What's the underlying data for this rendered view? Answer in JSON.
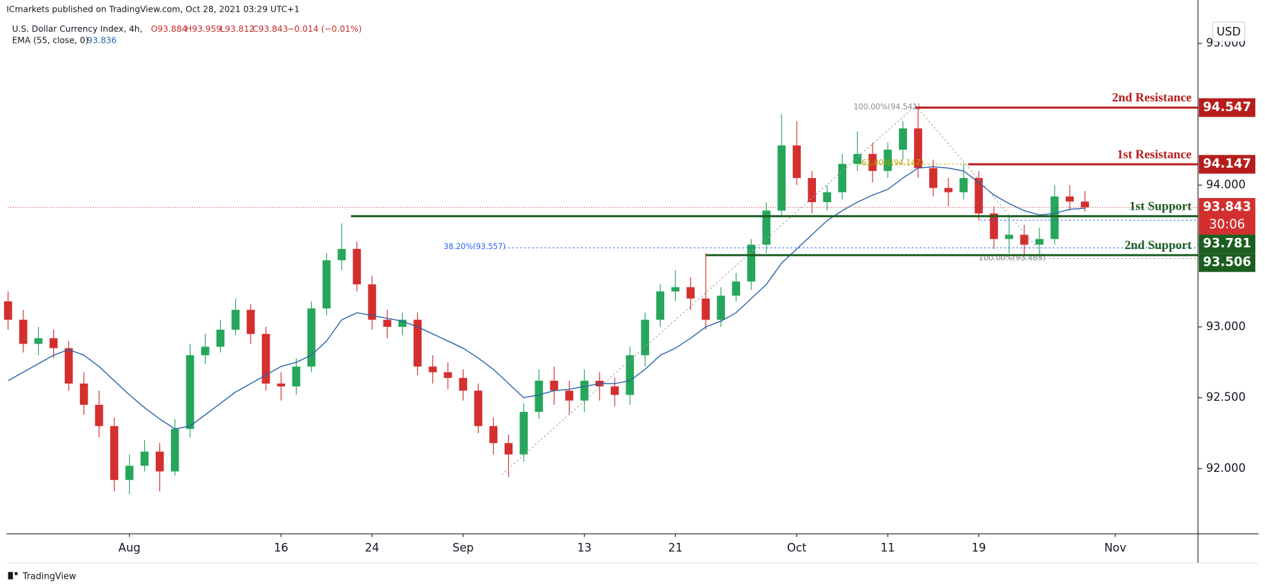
{
  "header": {
    "source": "ICmarkets published on TradingView.com, Oct 28, 2021 03:29 UTC+1",
    "symbol": "U.S. Dollar Currency Index, 4h,",
    "ohlc": [
      "O93.884",
      "H93.959",
      "L93.812",
      "C93.843",
      "−0.014 (−0.01%)"
    ],
    "indicator": "EMA (55, close, 0)"
  },
  "currency": "USD",
  "countdown": "30:06",
  "footer": "TradingView",
  "annotations": [
    "100.00%(94.541)",
    "61.80%(94.147)",
    "38.20%(93.557)",
    "100.00%(93.483)"
  ],
  "chart_data": {
    "type": "candlestick",
    "categories": [
      null,
      null,
      null,
      null,
      null,
      null,
      null,
      null,
      "Aug",
      null,
      null,
      null,
      null,
      null,
      null,
      null,
      null,
      null,
      "16",
      null,
      null,
      null,
      null,
      null,
      "24",
      null,
      null,
      null,
      null,
      null,
      "Sep",
      null,
      null,
      null,
      null,
      null,
      null,
      null,
      "13",
      null,
      null,
      null,
      null,
      null,
      "21",
      null,
      null,
      null,
      null,
      null,
      null,
      null,
      "Oct",
      null,
      null,
      null,
      null,
      null,
      "11",
      null,
      null,
      null,
      null,
      null,
      "19",
      null,
      null,
      null,
      null,
      null,
      null,
      null,
      null,
      "Nov"
    ],
    "open": [
      93.18,
      93.05,
      92.88,
      92.92,
      92.85,
      92.6,
      92.45,
      92.3,
      91.92,
      92.02,
      92.12,
      91.98,
      92.28,
      92.8,
      92.86,
      92.98,
      93.12,
      92.95,
      92.6,
      92.58,
      92.72,
      93.13,
      93.47,
      93.55,
      93.3,
      93.05,
      93.0,
      93.05,
      92.72,
      92.68,
      92.64,
      92.55,
      92.3,
      92.18,
      92.1,
      92.4,
      92.62,
      92.55,
      92.48,
      92.62,
      92.58,
      92.52,
      92.8,
      93.05,
      93.25,
      93.28,
      93.2,
      93.05,
      93.22,
      93.32,
      93.58,
      93.82,
      94.28,
      94.05,
      93.88,
      93.95,
      94.15,
      94.22,
      94.1,
      94.25,
      94.4,
      94.12,
      93.98,
      93.95,
      94.05,
      93.8,
      93.62,
      93.65,
      93.58,
      93.62,
      93.92,
      93.884,
      null,
      null
    ],
    "high": [
      93.25,
      93.12,
      93.0,
      92.98,
      92.9,
      92.68,
      92.55,
      92.36,
      92.1,
      92.2,
      92.18,
      92.35,
      92.88,
      92.95,
      93.05,
      93.2,
      93.16,
      93.0,
      92.68,
      92.78,
      93.18,
      93.52,
      93.73,
      93.6,
      93.36,
      93.12,
      93.1,
      93.1,
      92.8,
      92.75,
      92.7,
      92.6,
      92.36,
      92.24,
      92.46,
      92.7,
      92.72,
      92.62,
      92.7,
      92.68,
      92.64,
      92.86,
      93.1,
      93.3,
      93.4,
      93.35,
      93.52,
      93.28,
      93.38,
      93.62,
      93.88,
      94.5,
      94.45,
      94.1,
      94.0,
      94.22,
      94.38,
      94.3,
      94.3,
      94.45,
      94.541,
      94.18,
      94.05,
      94.15,
      94.1,
      93.85,
      93.78,
      93.72,
      93.7,
      94.0,
      94.0,
      93.959,
      null,
      null
    ],
    "low": [
      92.98,
      92.82,
      92.8,
      92.78,
      92.55,
      92.38,
      92.22,
      91.84,
      91.82,
      91.98,
      91.84,
      91.95,
      92.22,
      92.74,
      92.82,
      92.94,
      92.88,
      92.55,
      92.48,
      92.52,
      92.68,
      93.08,
      93.4,
      93.25,
      92.98,
      92.92,
      92.94,
      92.66,
      92.6,
      92.56,
      92.48,
      92.25,
      92.1,
      91.94,
      92.05,
      92.35,
      92.45,
      92.38,
      92.4,
      92.48,
      92.44,
      92.45,
      92.72,
      93.0,
      93.18,
      93.12,
      92.98,
      93.0,
      93.18,
      93.26,
      93.52,
      93.78,
      94.0,
      93.8,
      93.82,
      93.9,
      94.1,
      94.02,
      94.05,
      94.18,
      94.05,
      93.92,
      93.85,
      93.9,
      93.75,
      93.55,
      93.52,
      93.5,
      93.483,
      93.58,
      93.82,
      93.812,
      null,
      null
    ],
    "close": [
      93.05,
      92.88,
      92.92,
      92.85,
      92.6,
      92.45,
      92.3,
      91.92,
      92.02,
      92.12,
      91.98,
      92.28,
      92.8,
      92.86,
      92.98,
      93.12,
      92.95,
      92.6,
      92.58,
      92.72,
      93.13,
      93.47,
      93.55,
      93.3,
      93.05,
      93.0,
      93.05,
      92.72,
      92.68,
      92.64,
      92.55,
      92.3,
      92.18,
      92.1,
      92.4,
      92.62,
      92.55,
      92.48,
      92.62,
      92.58,
      92.52,
      92.8,
      93.05,
      93.25,
      93.28,
      93.2,
      93.05,
      93.22,
      93.32,
      93.58,
      93.82,
      94.28,
      94.05,
      93.88,
      93.95,
      94.15,
      94.22,
      94.1,
      94.25,
      94.4,
      94.12,
      93.98,
      93.95,
      94.05,
      93.8,
      93.62,
      93.65,
      93.58,
      93.62,
      93.92,
      93.884,
      93.843,
      null,
      null
    ],
    "up_color": "#26a65b",
    "down_color": "#d32f2f",
    "ema": {
      "color": "#2962a8",
      "values": [
        92.62,
        92.68,
        92.74,
        92.8,
        92.84,
        92.8,
        92.72,
        92.62,
        92.52,
        92.43,
        92.35,
        92.28,
        92.3,
        92.38,
        92.46,
        92.54,
        92.6,
        92.66,
        92.72,
        92.75,
        92.8,
        92.9,
        93.05,
        93.1,
        93.08,
        93.06,
        93.04,
        93.0,
        92.95,
        92.9,
        92.85,
        92.78,
        92.7,
        92.6,
        92.5,
        92.52,
        92.55,
        92.56,
        92.58,
        92.6,
        92.6,
        92.62,
        92.7,
        92.8,
        92.85,
        92.92,
        93.0,
        93.04,
        93.1,
        93.2,
        93.3,
        93.45,
        93.55,
        93.65,
        93.75,
        93.82,
        93.88,
        93.93,
        93.97,
        94.05,
        94.12,
        94.13,
        94.12,
        94.1,
        94.02,
        93.93,
        93.87,
        93.82,
        93.79,
        93.8,
        93.83,
        93.836,
        null,
        null
      ]
    },
    "last_price": 93.843,
    "last_price_color": "#d32f2f",
    "levels": [
      {
        "name": "2nd Resistance",
        "value": 94.547,
        "color": "#b71c1c"
      },
      {
        "name": "1st Resistance",
        "value": 94.147,
        "color": "#b71c1c"
      },
      {
        "name": "1st Support",
        "value": 93.781,
        "color": "#1b5e20"
      },
      {
        "name": "2nd Support",
        "value": 93.506,
        "color": "#1b5e20"
      }
    ],
    "ylim": [
      91.54,
      95.18
    ],
    "yticks": [
      {
        "value": 92,
        "label": "92.000"
      },
      {
        "value": 92.5,
        "label": "92.500"
      },
      {
        "value": 93,
        "label": "93.000"
      },
      {
        "value": 94,
        "label": "94.000"
      },
      {
        "value": 95,
        "label": "95.000"
      }
    ],
    "grid": false
  }
}
